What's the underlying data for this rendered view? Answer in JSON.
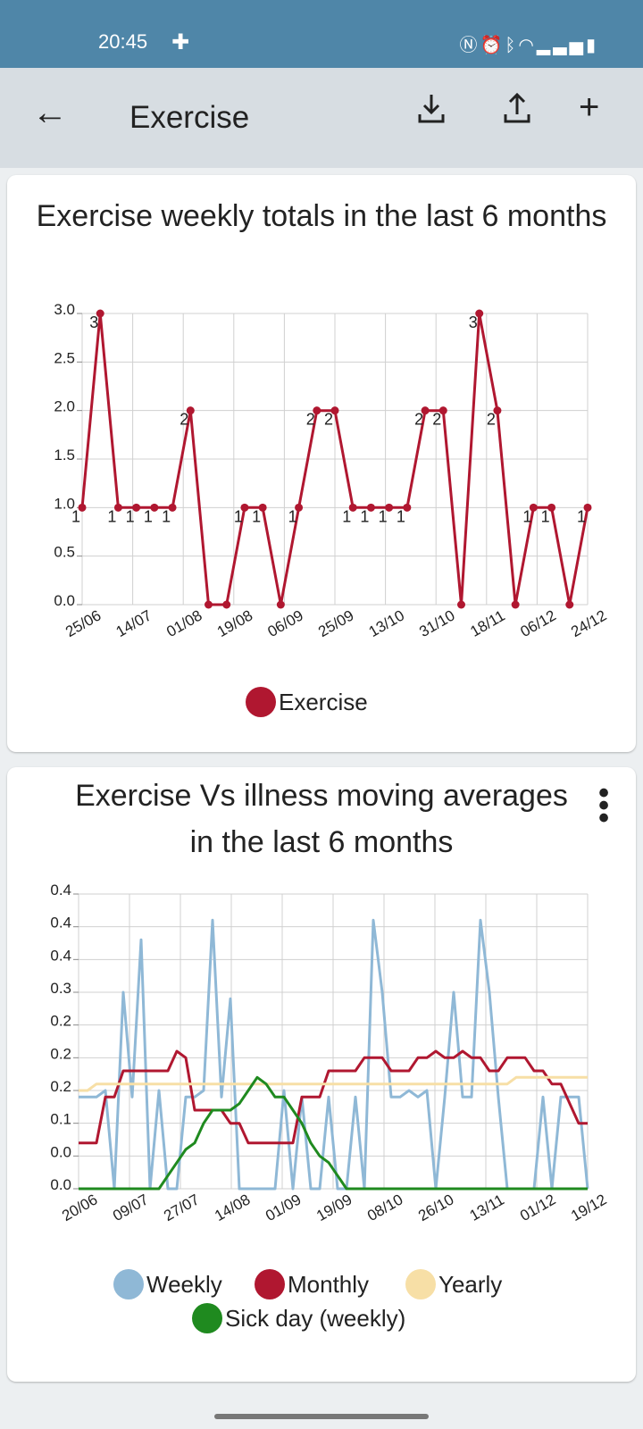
{
  "status_bar": {
    "time": "20:45",
    "icons": [
      "plus-icon",
      "nfc-icon",
      "alarm-icon",
      "bluetooth-icon",
      "wifi-icon",
      "signal-icon",
      "battery-icon"
    ]
  },
  "app_bar": {
    "title": "Exercise",
    "actions": [
      "download-icon",
      "share-icon",
      "add-icon"
    ]
  },
  "chart1": {
    "title": "Exercise weekly totals in the last 6 months",
    "chart_data": {
      "type": "line",
      "title": "Exercise weekly totals in the last 6 months",
      "x_tick_labels": [
        "25/06",
        "14/07",
        "01/08",
        "19/08",
        "06/09",
        "25/09",
        "13/10",
        "31/10",
        "18/11",
        "06/12",
        "24/12"
      ],
      "y_tick_labels": [
        "0.0",
        "0.5",
        "1.0",
        "1.5",
        "2.0",
        "2.5",
        "3.0"
      ],
      "ylim": [
        0,
        3.0
      ],
      "grid": true,
      "legend_position": "bottom",
      "series": [
        {
          "name": "Exercise",
          "color": "#b01730",
          "values": [
            1,
            3,
            1,
            1,
            1,
            1,
            2,
            0,
            0,
            1,
            1,
            0,
            1,
            2,
            2,
            1,
            1,
            1,
            1,
            2,
            2,
            0,
            3,
            2,
            0,
            1,
            1,
            0,
            1
          ]
        }
      ]
    }
  },
  "chart2": {
    "title": "Exercise Vs illness moving averages in the last 6 months",
    "chart_data": {
      "type": "line",
      "title": "Exercise Vs illness moving averages in the last 6 months",
      "x_tick_labels": [
        "20/06",
        "09/07",
        "27/07",
        "14/08",
        "01/09",
        "19/09",
        "08/10",
        "26/10",
        "13/11",
        "01/12",
        "19/12"
      ],
      "y_tick_labels": [
        "0.0",
        "0.0",
        "0.1",
        "0.2",
        "0.2",
        "0.2",
        "0.3",
        "0.4",
        "0.4",
        "0.4"
      ],
      "ylim": [
        0,
        0.45
      ],
      "grid": true,
      "legend_position": "bottom",
      "series": [
        {
          "name": "Weekly",
          "color": "#8fb8d6",
          "values": [
            0.14,
            0.14,
            0.14,
            0.15,
            0.0,
            0.3,
            0.14,
            0.38,
            0.0,
            0.15,
            0.0,
            0.0,
            0.14,
            0.14,
            0.15,
            0.41,
            0.14,
            0.29,
            0.0,
            0.0,
            0.0,
            0.0,
            0.0,
            0.15,
            0.0,
            0.14,
            0.0,
            0.0,
            0.14,
            0.0,
            0.0,
            0.14,
            0.0,
            0.41,
            0.3,
            0.14,
            0.14,
            0.15,
            0.14,
            0.15,
            0.0,
            0.14,
            0.3,
            0.14,
            0.14,
            0.41,
            0.3,
            0.14,
            0.0,
            0.0,
            0.0,
            0.0,
            0.14,
            0.0,
            0.14,
            0.14,
            0.14,
            0.0
          ]
        },
        {
          "name": "Monthly",
          "color": "#b01730",
          "values": [
            0.07,
            0.07,
            0.07,
            0.14,
            0.14,
            0.18,
            0.18,
            0.18,
            0.18,
            0.18,
            0.18,
            0.21,
            0.2,
            0.12,
            0.12,
            0.12,
            0.12,
            0.1,
            0.1,
            0.07,
            0.07,
            0.07,
            0.07,
            0.07,
            0.07,
            0.14,
            0.14,
            0.14,
            0.18,
            0.18,
            0.18,
            0.18,
            0.2,
            0.2,
            0.2,
            0.18,
            0.18,
            0.18,
            0.2,
            0.2,
            0.21,
            0.2,
            0.2,
            0.21,
            0.2,
            0.2,
            0.18,
            0.18,
            0.2,
            0.2,
            0.2,
            0.18,
            0.18,
            0.16,
            0.16,
            0.13,
            0.1,
            0.1
          ]
        },
        {
          "name": "Yearly",
          "color": "#f7dfa6",
          "values": [
            0.15,
            0.15,
            0.16,
            0.16,
            0.16,
            0.16,
            0.16,
            0.16,
            0.16,
            0.16,
            0.16,
            0.16,
            0.16,
            0.16,
            0.16,
            0.16,
            0.16,
            0.16,
            0.16,
            0.16,
            0.16,
            0.16,
            0.16,
            0.16,
            0.16,
            0.16,
            0.16,
            0.16,
            0.16,
            0.16,
            0.16,
            0.16,
            0.16,
            0.16,
            0.16,
            0.16,
            0.16,
            0.16,
            0.16,
            0.16,
            0.16,
            0.16,
            0.16,
            0.16,
            0.16,
            0.16,
            0.16,
            0.16,
            0.16,
            0.17,
            0.17,
            0.17,
            0.17,
            0.17,
            0.17,
            0.17,
            0.17,
            0.17
          ]
        },
        {
          "name": "Sick day (weekly)",
          "color": "#1f8a1f",
          "values": [
            0,
            0,
            0,
            0,
            0,
            0,
            0,
            0,
            0,
            0,
            0.02,
            0.04,
            0.06,
            0.07,
            0.1,
            0.12,
            0.12,
            0.12,
            0.13,
            0.15,
            0.17,
            0.16,
            0.14,
            0.14,
            0.12,
            0.1,
            0.07,
            0.05,
            0.04,
            0.02,
            0,
            0,
            0,
            0,
            0,
            0,
            0,
            0,
            0,
            0,
            0,
            0,
            0,
            0,
            0,
            0,
            0,
            0,
            0,
            0,
            0,
            0,
            0,
            0,
            0,
            0,
            0,
            0
          ]
        }
      ]
    }
  }
}
